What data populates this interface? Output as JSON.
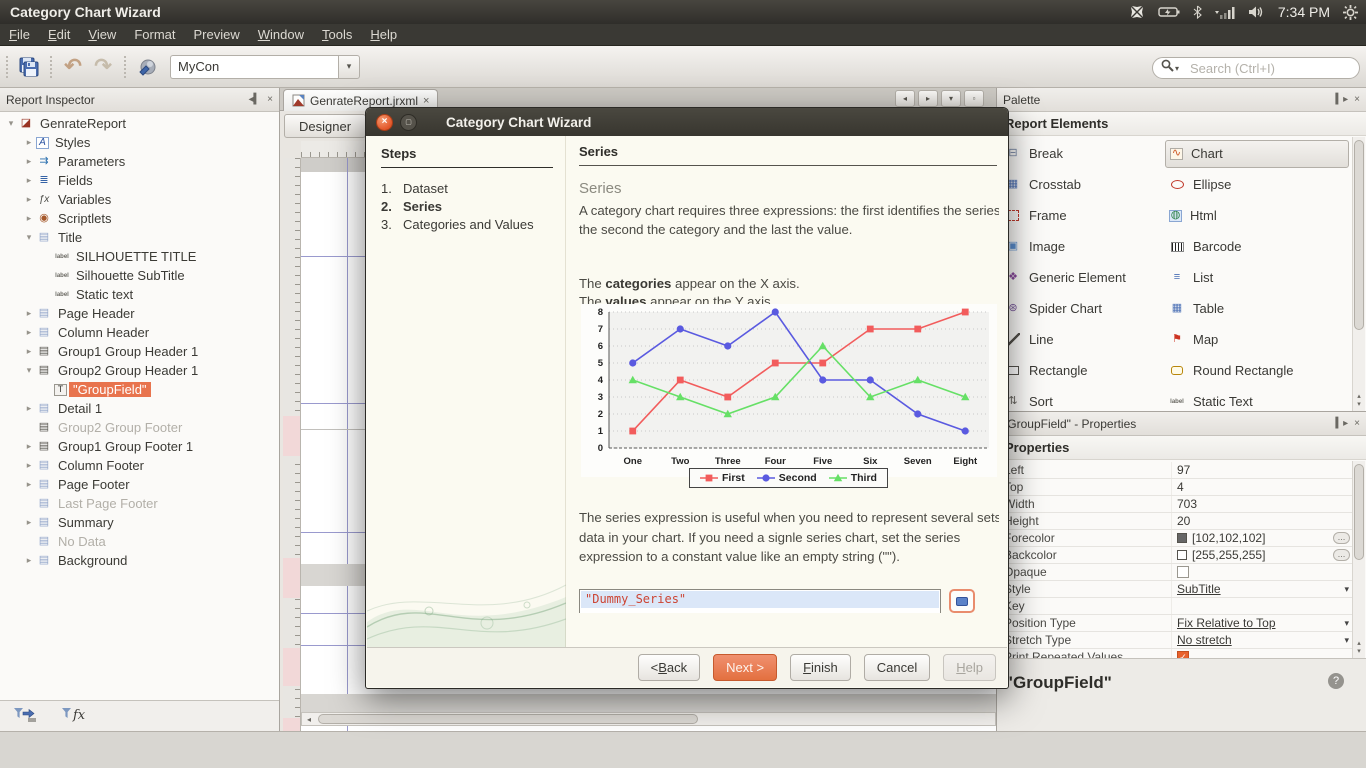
{
  "desktop": {
    "window_title": "Category Chart Wizard",
    "time": "7:34 PM",
    "tray_icons": [
      "app-indicator-icon",
      "battery-icon",
      "bluetooth-icon",
      "network-signal-icon",
      "volume-icon",
      "session-gear-icon"
    ]
  },
  "menu_bar": {
    "items": [
      {
        "label": "File",
        "u": 0
      },
      {
        "label": "Edit",
        "u": 0
      },
      {
        "label": "View",
        "u": 0
      },
      {
        "label": "Format",
        "u": -1
      },
      {
        "label": "Preview",
        "u": -1
      },
      {
        "label": "Window",
        "u": 0
      },
      {
        "label": "Tools",
        "u": 0
      },
      {
        "label": "Help",
        "u": 0
      }
    ]
  },
  "toolbar": {
    "combo_value": "MyCon",
    "search_placeholder": "Search (Ctrl+I)",
    "icons": [
      "save-all-icon",
      "undo-icon",
      "redo-icon",
      "build-icon"
    ]
  },
  "report_inspector": {
    "title": "Report Inspector",
    "items": [
      {
        "exp": "open",
        "icon": "report-icon",
        "label": "GenrateReport",
        "lvl": 0
      },
      {
        "exp": "closed",
        "icon": "styles-icon",
        "label": "Styles",
        "lvl": 1
      },
      {
        "exp": "closed",
        "icon": "parameters-icon",
        "label": "Parameters",
        "lvl": 1
      },
      {
        "exp": "closed",
        "icon": "fields-icon",
        "label": "Fields",
        "lvl": 1
      },
      {
        "exp": "closed",
        "icon": "variables-icon",
        "label": "Variables",
        "lvl": 1
      },
      {
        "exp": "closed",
        "icon": "scriptlets-icon",
        "label": "Scriptlets",
        "lvl": 1
      },
      {
        "exp": "open",
        "icon": "band-icon",
        "label": "Title",
        "lvl": 1
      },
      {
        "exp": "none",
        "icon": "label-icon",
        "label": "SILHOUETTE TITLE",
        "lvl": 2
      },
      {
        "exp": "none",
        "icon": "label-icon",
        "label": "Silhouette SubTitle",
        "lvl": 2
      },
      {
        "exp": "none",
        "icon": "label-icon",
        "label": "Static text",
        "lvl": 2
      },
      {
        "exp": "closed",
        "icon": "band-icon",
        "label": "Page Header",
        "lvl": 1
      },
      {
        "exp": "closed",
        "icon": "band-icon",
        "label": "Column Header",
        "lvl": 1
      },
      {
        "exp": "closed",
        "icon": "groupband-icon",
        "label": "Group1 Group Header 1",
        "lvl": 1
      },
      {
        "exp": "open",
        "icon": "groupband-icon",
        "label": "Group2 Group Header 1",
        "lvl": 1
      },
      {
        "exp": "none",
        "icon": "textfield-icon",
        "label": "\"GroupField\"",
        "lvl": 2,
        "state": "selected"
      },
      {
        "exp": "closed",
        "icon": "band-icon",
        "label": "Detail 1",
        "lvl": 1
      },
      {
        "exp": "none",
        "icon": "groupband-icon",
        "label": "Group2 Group Footer",
        "lvl": 1,
        "state": "muted"
      },
      {
        "exp": "closed",
        "icon": "groupband-icon",
        "label": "Group1 Group Footer 1",
        "lvl": 1
      },
      {
        "exp": "closed",
        "icon": "band-icon",
        "label": "Column Footer",
        "lvl": 1
      },
      {
        "exp": "closed",
        "icon": "band-icon",
        "label": "Page Footer",
        "lvl": 1
      },
      {
        "exp": "none",
        "icon": "band-icon",
        "label": "Last Page Footer",
        "lvl": 1,
        "state": "muted"
      },
      {
        "exp": "closed",
        "icon": "band-icon",
        "label": "Summary",
        "lvl": 1
      },
      {
        "exp": "none",
        "icon": "band-icon",
        "label": "No Data",
        "lvl": 1,
        "state": "muted"
      },
      {
        "exp": "closed",
        "icon": "band-icon",
        "label": "Background",
        "lvl": 1
      }
    ],
    "footer_icons": [
      "parameters-filter-icon",
      "variables-filter-icon"
    ]
  },
  "document": {
    "tab_label": "GenrateReport.jrxml",
    "view_button": "Designer",
    "ruler_zero": "0"
  },
  "palette": {
    "title": "Palette",
    "section": "Report Elements",
    "items": [
      {
        "label": "Break",
        "icon": "break-icon"
      },
      {
        "label": "Chart",
        "icon": "chart-icon",
        "selected": true
      },
      {
        "label": "Crosstab",
        "icon": "crosstab-icon"
      },
      {
        "label": "Ellipse",
        "icon": "ellipse-icon"
      },
      {
        "label": "Frame",
        "icon": "frame-icon"
      },
      {
        "label": "Html",
        "icon": "html-icon"
      },
      {
        "label": "Image",
        "icon": "image-icon"
      },
      {
        "label": "Barcode",
        "icon": "barcode-icon"
      },
      {
        "label": "Generic Element",
        "icon": "generic-element-icon"
      },
      {
        "label": "List",
        "icon": "list-icon"
      },
      {
        "label": "Spider Chart",
        "icon": "spider-chart-icon"
      },
      {
        "label": "Table",
        "icon": "table-icon"
      },
      {
        "label": "Line",
        "icon": "line-icon"
      },
      {
        "label": "Map",
        "icon": "map-icon"
      },
      {
        "label": "Rectangle",
        "icon": "rectangle-icon"
      },
      {
        "label": "Round Rectangle",
        "icon": "round-rectangle-icon"
      },
      {
        "label": "Sort",
        "icon": "sort-icon"
      },
      {
        "label": "Static Text",
        "icon": "static-text-icon"
      }
    ]
  },
  "properties": {
    "title": "\"GroupField\" - Properties",
    "section": "Properties",
    "rows": [
      {
        "label": "Left",
        "type": "text",
        "value": "97"
      },
      {
        "label": "Top",
        "type": "text",
        "value": "4"
      },
      {
        "label": "Width",
        "type": "text",
        "value": "703"
      },
      {
        "label": "Height",
        "type": "text",
        "value": "20"
      },
      {
        "label": "Forecolor",
        "type": "color",
        "value": "[102,102,102]",
        "swatch": "#666666"
      },
      {
        "label": "Backcolor",
        "type": "color",
        "value": "[255,255,255]",
        "swatch": "#ffffff"
      },
      {
        "label": "Opaque",
        "type": "checkbox",
        "checked": false
      },
      {
        "label": "Style",
        "type": "dropdown",
        "value": "SubTitle"
      },
      {
        "label": "Key",
        "type": "text",
        "value": ""
      },
      {
        "label": "Position Type",
        "type": "dropdown",
        "value": "Fix Relative to Top"
      },
      {
        "label": "Stretch Type",
        "type": "dropdown",
        "value": "No stretch"
      },
      {
        "label": "Print Repeated Values",
        "type": "checkbox",
        "checked": true
      }
    ],
    "footer_text": "\"GroupField\"",
    "help_glyph": "?"
  },
  "dialog": {
    "title": "Category Chart Wizard",
    "steps_title": "Steps",
    "steps": [
      {
        "num": "1.",
        "label": "Dataset",
        "active": false
      },
      {
        "num": "2.",
        "label": "Series",
        "active": true
      },
      {
        "num": "3.",
        "label": "Categories and Values",
        "active": false
      }
    ],
    "content": {
      "heading": "Series",
      "subheading": "Series",
      "p1": "A category chart requires three expressions: the first identifies the series, the second the category and the last the value.",
      "cat_line": {
        "pre": "The ",
        "bold": "categories",
        "post": " appear on the X axis."
      },
      "val_line": {
        "pre": "The ",
        "bold": "values",
        "post": " appear on the Y axis."
      },
      "p2": "The series expression is useful when you need to represent several sets of data in your chart. If you need a signle series chart, set the series expression to a constant value like an empty string (\"\").",
      "expression": "\"Dummy_Series\""
    },
    "buttons": [
      {
        "label": "< Back",
        "u": 2
      },
      {
        "label": "Next >",
        "u": -1,
        "primary": true
      },
      {
        "label": "Finish",
        "u": 0
      },
      {
        "label": "Cancel",
        "u": -1
      },
      {
        "label": "Help",
        "u": 0,
        "disabled": true
      }
    ]
  },
  "chart_data": {
    "type": "line",
    "title": "",
    "xlabel": "",
    "ylabel": "",
    "categories": [
      "One",
      "Two",
      "Three",
      "Four",
      "Five",
      "Six",
      "Seven",
      "Eight"
    ],
    "series": [
      {
        "name": "First",
        "marker": "square",
        "color": "#f25c5c",
        "values": [
          1,
          4,
          3,
          5,
          5,
          7,
          7,
          8
        ]
      },
      {
        "name": "Second",
        "marker": "circle",
        "color": "#5a5ae0",
        "values": [
          5,
          7,
          6,
          8,
          4,
          4,
          2,
          1
        ]
      },
      {
        "name": "Third",
        "marker": "triangle",
        "color": "#66e066",
        "values": [
          4,
          3,
          2,
          3,
          6,
          3,
          4,
          3
        ]
      }
    ],
    "ylim": [
      0,
      8
    ],
    "yticks": [
      0,
      1,
      2,
      3,
      4,
      5,
      6,
      7,
      8
    ],
    "grid": true,
    "legend_position": "bottom"
  }
}
